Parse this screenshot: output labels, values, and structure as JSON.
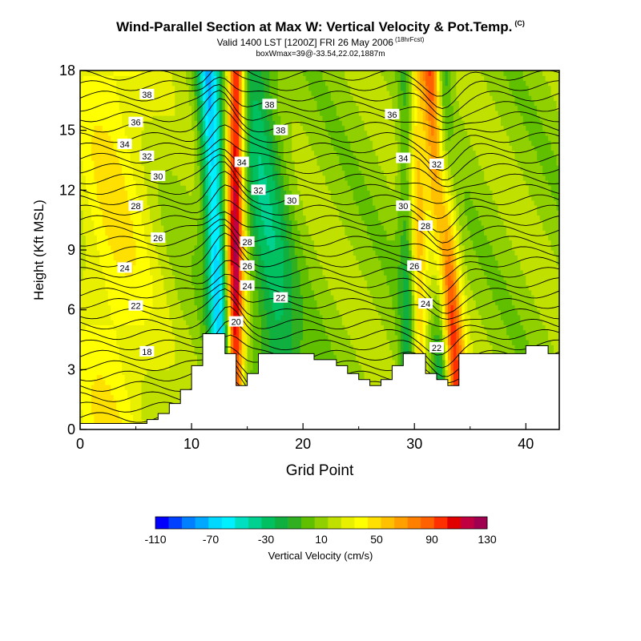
{
  "header": {
    "title": "Wind-Parallel Section at Max W: Vertical Velocity & Pot.Temp.",
    "copyright": "(C)",
    "valid_line": "Valid 1400 LST [1200Z] FRI 26 May 2006",
    "forecast_tag": "(18hrFcst)",
    "box_line": "boxWmax=39@-33.54,22.02,1887m"
  },
  "chart_data": {
    "type": "heatmap",
    "xlabel": "Grid Point",
    "ylabel": "Height (Kft MSL)",
    "xlim": [
      0,
      43
    ],
    "ylim": [
      0,
      18
    ],
    "x_ticks": [
      0,
      10,
      20,
      30,
      40
    ],
    "y_ticks": [
      0,
      3,
      6,
      9,
      12,
      15,
      18
    ],
    "colorbar": {
      "label": "Vertical Velocity (cm/s)",
      "tick_labels": [
        "-110",
        "-70",
        "-30",
        "10",
        "50",
        "90",
        "130"
      ],
      "tick_values": [
        -110,
        -70,
        -30,
        10,
        50,
        90,
        130
      ],
      "min": -110,
      "max": 130,
      "colors": [
        "#0000ff",
        "#0040ff",
        "#0080ff",
        "#00a8ff",
        "#00d8ff",
        "#00f0ff",
        "#00e0c0",
        "#00d090",
        "#00c060",
        "#10b040",
        "#30b020",
        "#60c000",
        "#90d000",
        "#c0e000",
        "#e8f000",
        "#ffff00",
        "#ffe000",
        "#ffc000",
        "#ffa000",
        "#ff8000",
        "#ff6000",
        "#ff3000",
        "#e00000",
        "#c00040",
        "#a00050"
      ]
    },
    "contour_labels": [
      {
        "text": "38",
        "x": 6,
        "y": 16.8
      },
      {
        "text": "36",
        "x": 5,
        "y": 15.4
      },
      {
        "text": "34",
        "x": 4,
        "y": 14.3
      },
      {
        "text": "32",
        "x": 6,
        "y": 13.7
      },
      {
        "text": "30",
        "x": 7,
        "y": 12.7
      },
      {
        "text": "28",
        "x": 5,
        "y": 11.2
      },
      {
        "text": "26",
        "x": 7,
        "y": 9.6
      },
      {
        "text": "24",
        "x": 4,
        "y": 8.1
      },
      {
        "text": "22",
        "x": 5,
        "y": 6.2
      },
      {
        "text": "18",
        "x": 6,
        "y": 3.9
      },
      {
        "text": "38",
        "x": 17,
        "y": 16.3
      },
      {
        "text": "38",
        "x": 18,
        "y": 15.0
      },
      {
        "text": "34",
        "x": 14.5,
        "y": 13.4
      },
      {
        "text": "32",
        "x": 16,
        "y": 12.0
      },
      {
        "text": "30",
        "x": 19,
        "y": 11.5
      },
      {
        "text": "28",
        "x": 15,
        "y": 9.4
      },
      {
        "text": "26",
        "x": 15,
        "y": 8.2
      },
      {
        "text": "24",
        "x": 15,
        "y": 7.2
      },
      {
        "text": "22",
        "x": 18,
        "y": 6.6
      },
      {
        "text": "20",
        "x": 14,
        "y": 5.4
      },
      {
        "text": "36",
        "x": 28,
        "y": 15.8
      },
      {
        "text": "34",
        "x": 29,
        "y": 13.6
      },
      {
        "text": "32",
        "x": 32,
        "y": 13.3
      },
      {
        "text": "30",
        "x": 29,
        "y": 11.2
      },
      {
        "text": "28",
        "x": 31,
        "y": 10.2
      },
      {
        "text": "26",
        "x": 30,
        "y": 8.2
      },
      {
        "text": "24",
        "x": 31,
        "y": 6.3
      },
      {
        "text": "22",
        "x": 32,
        "y": 4.1
      }
    ],
    "terrain": [
      {
        "x": 0,
        "h": 0.3
      },
      {
        "x": 5,
        "h": 0.3
      },
      {
        "x": 6,
        "h": 0.5
      },
      {
        "x": 7,
        "h": 0.8
      },
      {
        "x": 8,
        "h": 1.3
      },
      {
        "x": 9,
        "h": 2.0
      },
      {
        "x": 10,
        "h": 3.2
      },
      {
        "x": 11,
        "h": 4.8
      },
      {
        "x": 12,
        "h": 4.8
      },
      {
        "x": 13,
        "h": 3.8
      },
      {
        "x": 14,
        "h": 2.2
      },
      {
        "x": 15,
        "h": 2.8
      },
      {
        "x": 16,
        "h": 3.8
      },
      {
        "x": 20,
        "h": 3.8
      },
      {
        "x": 21,
        "h": 3.5
      },
      {
        "x": 22,
        "h": 3.5
      },
      {
        "x": 23,
        "h": 3.2
      },
      {
        "x": 24,
        "h": 2.8
      },
      {
        "x": 25,
        "h": 2.5
      },
      {
        "x": 26,
        "h": 2.2
      },
      {
        "x": 27,
        "h": 2.5
      },
      {
        "x": 28,
        "h": 3.2
      },
      {
        "x": 29,
        "h": 3.8
      },
      {
        "x": 30,
        "h": 3.8
      },
      {
        "x": 31,
        "h": 2.8
      },
      {
        "x": 32,
        "h": 2.5
      },
      {
        "x": 33,
        "h": 2.2
      },
      {
        "x": 34,
        "h": 3.8
      },
      {
        "x": 39,
        "h": 3.8
      },
      {
        "x": 40,
        "h": 4.2
      },
      {
        "x": 41,
        "h": 4.2
      },
      {
        "x": 42,
        "h": 3.8
      },
      {
        "x": 43,
        "h": 3.8
      }
    ],
    "vertical_velocity_features": [
      {
        "kind": "downdraft",
        "x_low": 13.0,
        "x_high": 11.5,
        "width": 1.0,
        "peak": -80
      },
      {
        "kind": "updraft",
        "x_low": 13.8,
        "x_high": 14.0,
        "width": 0.8,
        "peak": 110
      },
      {
        "kind": "downdraft",
        "x_low": 18.5,
        "x_high": 15.5,
        "width": 2.0,
        "peak": -40
      },
      {
        "kind": "updraft",
        "x_low": 30.5,
        "x_high": 30.0,
        "width": 0.8,
        "peak": 50
      },
      {
        "kind": "downdraft",
        "x_low": 29.5,
        "x_high": 29.5,
        "width": 0.8,
        "peak": -35
      },
      {
        "kind": "downdraft",
        "x_low": 32.5,
        "x_high": 32.5,
        "width": 0.8,
        "peak": -45
      },
      {
        "kind": "updraft",
        "x_low": 34.0,
        "x_high": 31.5,
        "width": 1.0,
        "peak": 90
      },
      {
        "kind": "updraft",
        "x_low": 3.0,
        "x_high": 3.0,
        "width": 4.0,
        "peak": 30
      }
    ]
  }
}
